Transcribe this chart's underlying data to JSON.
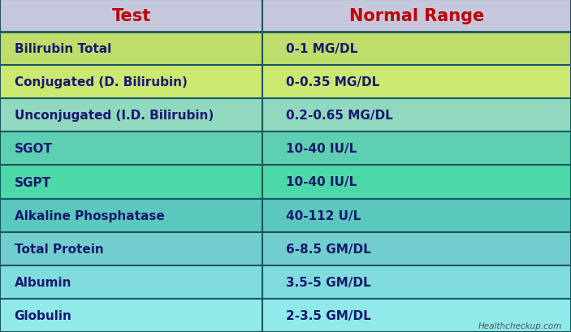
{
  "title_col1": "Test",
  "title_col2": "Normal Range",
  "title_color": "#bb0000",
  "header_bg": "#c5c8dc",
  "rows": [
    {
      "test": "Bilirubin Total",
      "range": "0-1 MG/DL",
      "bg": "#bedd6a"
    },
    {
      "test": "Conjugated (D. Bilirubin)",
      "range": "0-0.35 MG/DL",
      "bg": "#cce870"
    },
    {
      "test": "Unconjugated (I.D. Bilirubin)",
      "range": "0.2-0.65 MG/DL",
      "bg": "#90d8be"
    },
    {
      "test": "SGOT",
      "range": "10-40 IU/L",
      "bg": "#5ecfb0"
    },
    {
      "test": "SGPT",
      "range": "10-40 IU/L",
      "bg": "#4dd8a8"
    },
    {
      "test": "Alkaline Phosphatase",
      "range": "40-112 U/L",
      "bg": "#5ac8bc"
    },
    {
      "test": "Total Protein",
      "range": "6-8.5 GM/DL",
      "bg": "#72cece"
    },
    {
      "test": "Albumin",
      "range": "3.5-5 GM/DL",
      "bg": "#80dcdc"
    },
    {
      "test": "Globulin",
      "range": "2-3.5 GM/DL",
      "bg": "#90eaea"
    }
  ],
  "text_color": "#1a1870",
  "border_color": "#1a5560",
  "col_split": 0.46,
  "watermark": "Healthcheckup.com",
  "watermark_color": "#555555",
  "header_fontsize": 15,
  "row_fontsize": 11
}
